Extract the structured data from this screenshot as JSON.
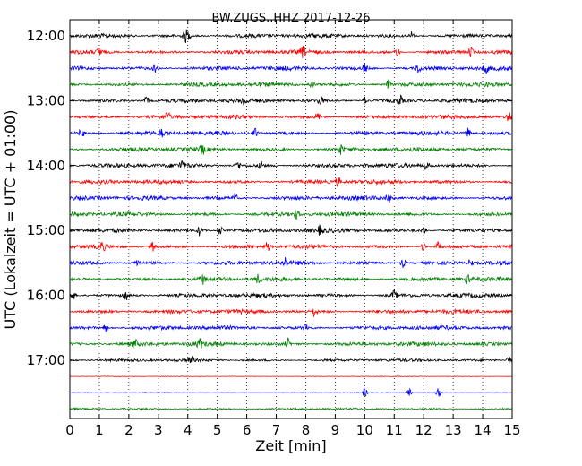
{
  "chart_data": {
    "type": "line",
    "title": "BW.ZUGS..HHZ 2017-12-26",
    "xlabel": "Zeit  [min]",
    "ylabel": "UTC (Lokalzeit = UTC + 01:00)",
    "xlim": [
      0,
      15
    ],
    "x_ticks": [
      "0",
      "1",
      "2",
      "3",
      "4",
      "5",
      "6",
      "7",
      "8",
      "9",
      "10",
      "11",
      "12",
      "13",
      "14",
      "15"
    ],
    "y_ticks": [
      "12:00",
      "13:00",
      "14:00",
      "15:00",
      "16:00",
      "17:00"
    ],
    "grid": "vertical dotted at each minute",
    "trace_colors": [
      "#000000",
      "#ff0000",
      "#0000ff",
      "#008000"
    ],
    "traces": [
      {
        "start": "12:00",
        "amplitude": "high",
        "spikes_min": [
          3.9,
          4.0,
          11.6
        ]
      },
      {
        "start": "12:15",
        "amplitude": "high",
        "spikes_min": [
          1.0,
          7.9,
          11.1,
          13.6
        ]
      },
      {
        "start": "12:30",
        "amplitude": "high",
        "spikes_min": [
          2.9,
          10.0,
          11.8,
          14.1
        ]
      },
      {
        "start": "12:45",
        "amplitude": "high",
        "spikes_min": [
          8.2,
          10.8
        ]
      },
      {
        "start": "13:00",
        "amplitude": "high",
        "spikes_min": [
          2.6,
          5.9,
          8.5,
          10.0,
          11.2
        ]
      },
      {
        "start": "13:15",
        "amplitude": "high",
        "spikes_min": [
          3.3,
          8.4,
          14.9
        ]
      },
      {
        "start": "13:30",
        "amplitude": "high",
        "spikes_min": [
          0.4,
          3.1,
          6.3,
          13.5
        ]
      },
      {
        "start": "13:45",
        "amplitude": "high",
        "spikes_min": [
          4.5,
          9.2
        ]
      },
      {
        "start": "14:00",
        "amplitude": "high",
        "spikes_min": [
          3.8,
          5.7,
          6.5,
          12.1
        ]
      },
      {
        "start": "14:15",
        "amplitude": "high",
        "spikes_min": [
          9.1
        ]
      },
      {
        "start": "14:30",
        "amplitude": "high",
        "spikes_min": [
          5.6,
          10.8
        ]
      },
      {
        "start": "14:45",
        "amplitude": "high",
        "spikes_min": [
          7.7
        ]
      },
      {
        "start": "15:00",
        "amplitude": "high",
        "spikes_min": [
          4.4,
          5.1,
          8.5,
          12.0
        ]
      },
      {
        "start": "15:15",
        "amplitude": "high",
        "spikes_min": [
          1.1,
          2.8,
          6.7,
          12.0,
          12.5
        ]
      },
      {
        "start": "15:30",
        "amplitude": "high",
        "spikes_min": [
          2.3,
          7.3,
          11.3,
          13.6
        ]
      },
      {
        "start": "15:45",
        "amplitude": "high",
        "spikes_min": [
          4.5,
          6.4,
          13.5
        ]
      },
      {
        "start": "16:00",
        "amplitude": "high",
        "spikes_min": [
          0.1,
          1.9,
          11.0
        ]
      },
      {
        "start": "16:15",
        "amplitude": "high",
        "spikes_min": [
          8.3
        ]
      },
      {
        "start": "16:30",
        "amplitude": "high",
        "spikes_min": [
          1.2,
          8.0
        ]
      },
      {
        "start": "16:45",
        "amplitude": "high",
        "spikes_min": [
          2.2,
          4.4,
          7.4
        ]
      },
      {
        "start": "17:00",
        "amplitude": "medium",
        "spikes_min": [
          4.1,
          14.9
        ]
      },
      {
        "start": "17:15",
        "amplitude": "flat",
        "spikes_min": []
      },
      {
        "start": "17:30",
        "amplitude": "flat",
        "spikes_min": [
          10.0,
          11.5,
          12.5
        ]
      },
      {
        "start": "17:45",
        "amplitude": "low",
        "spikes_min": []
      }
    ]
  }
}
